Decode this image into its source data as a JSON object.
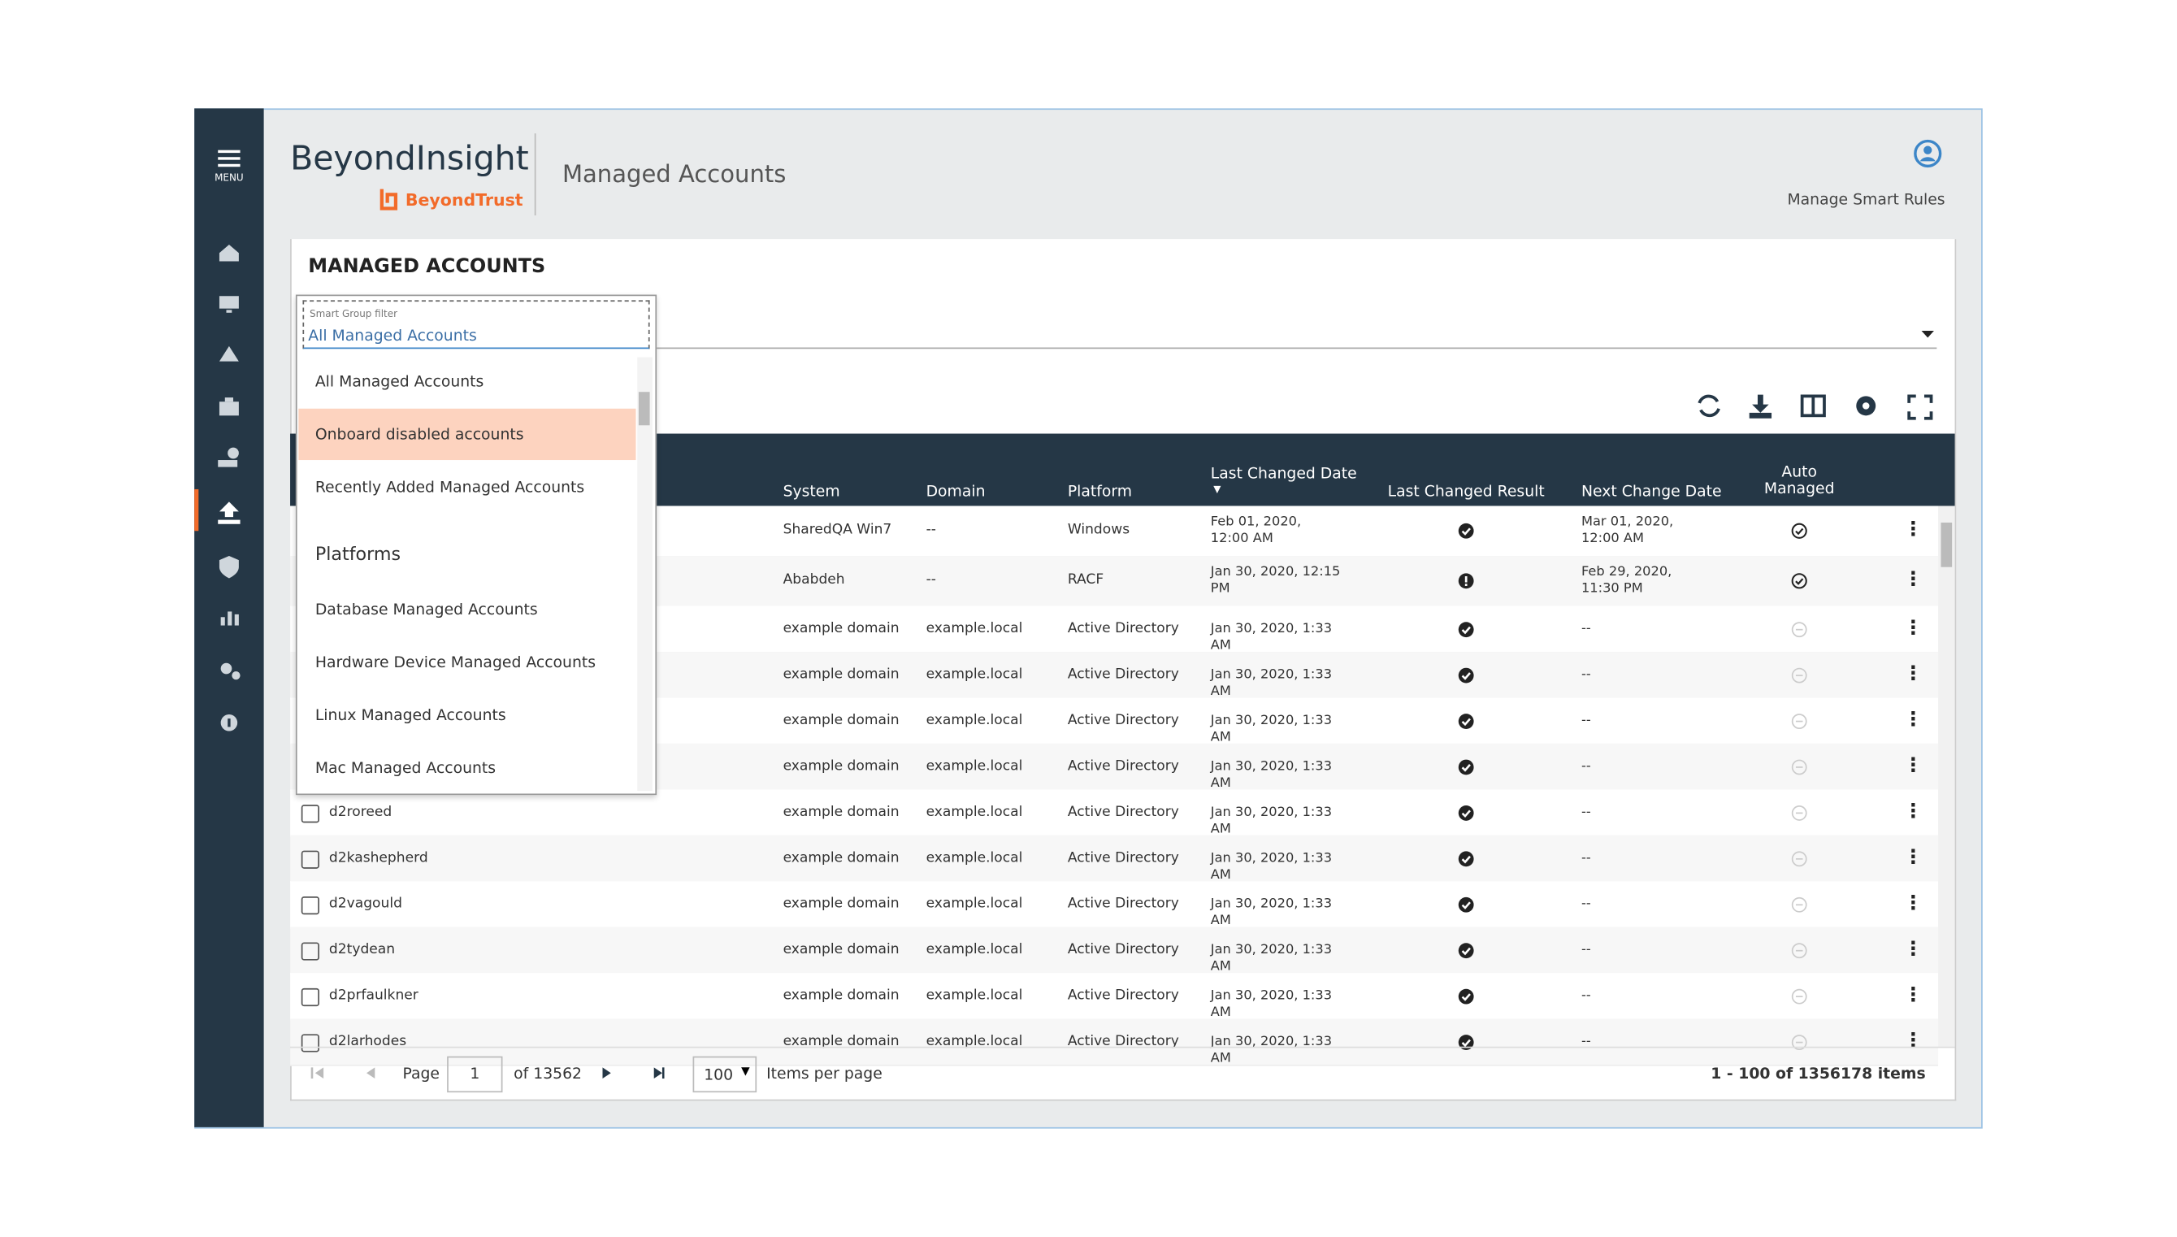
{
  "header": {
    "logo": "BeyondInsight",
    "brand": "BeyondTrust",
    "page_title": "Managed Accounts",
    "user_link": "Manage Smart Rules"
  },
  "sidebar": {
    "menu_label": "MENU"
  },
  "section_title": "MANAGED ACCOUNTS",
  "filter": {
    "label": "Smart Group filter",
    "value": "All Managed Accounts",
    "options": [
      "All Managed Accounts",
      "Onboard disabled accounts",
      "Recently Added Managed Accounts"
    ],
    "group_heading": "Platforms",
    "group_options": [
      "Database Managed Accounts",
      "Hardware Device Managed Accounts",
      "Linux Managed Accounts",
      "Mac Managed Accounts"
    ]
  },
  "table": {
    "columns": [
      "System",
      "Domain",
      "Platform",
      "Last Changed Date",
      "Last Changed Result",
      "Next Change Date",
      "Auto Managed"
    ],
    "rows": [
      {
        "system": "SharedQA Win7",
        "domain": "--",
        "platform": "Windows",
        "last_changed": "Feb 01, 2020, 12:00 AM",
        "next_change": "Mar 01, 2020, 12:00 AM"
      },
      {
        "system": "Ababdeh",
        "domain": "--",
        "platform": "RACF",
        "last_changed": "Jan 30, 2020, 12:15 PM",
        "next_change": "Feb 29, 2020, 11:30 PM"
      },
      {
        "system": "example domain",
        "domain": "example.local",
        "platform": "Active Directory",
        "last_changed": "Jan 30, 2020, 1:33 AM",
        "next_change": "--"
      },
      {
        "system": "example domain",
        "domain": "example.local",
        "platform": "Active Directory",
        "last_changed": "Jan 30, 2020, 1:33 AM",
        "next_change": "--"
      },
      {
        "system": "example domain",
        "domain": "example.local",
        "platform": "Active Directory",
        "last_changed": "Jan 30, 2020, 1:33 AM",
        "next_change": "--"
      },
      {
        "system": "example domain",
        "domain": "example.local",
        "platform": "Active Directory",
        "last_changed": "Jan 30, 2020, 1:33 AM",
        "next_change": "--"
      },
      {
        "name": "d2roreed",
        "system": "example domain",
        "domain": "example.local",
        "platform": "Active Directory",
        "last_changed": "Jan 30, 2020, 1:33 AM",
        "next_change": "--"
      },
      {
        "name": "d2kashepherd",
        "system": "example domain",
        "domain": "example.local",
        "platform": "Active Directory",
        "last_changed": "Jan 30, 2020, 1:33 AM",
        "next_change": "--"
      },
      {
        "name": "d2vagould",
        "system": "example domain",
        "domain": "example.local",
        "platform": "Active Directory",
        "last_changed": "Jan 30, 2020, 1:33 AM",
        "next_change": "--"
      },
      {
        "name": "d2tydean",
        "system": "example domain",
        "domain": "example.local",
        "platform": "Active Directory",
        "last_changed": "Jan 30, 2020, 1:33 AM",
        "next_change": "--"
      },
      {
        "name": "d2prfaulkner",
        "system": "example domain",
        "domain": "example.local",
        "platform": "Active Directory",
        "last_changed": "Jan 30, 2020, 1:33 AM",
        "next_change": "--"
      },
      {
        "name": "d2larhodes",
        "system": "example domain",
        "domain": "example.local",
        "platform": "Active Directory",
        "last_changed": "Jan 30, 2020, 1:33 AM",
        "next_change": "--"
      }
    ]
  },
  "pagination": {
    "page_label": "Page",
    "page": "1",
    "of_pages": "of 13562",
    "page_size": "100",
    "per_page_label": "Items per page",
    "summary": "1 - 100 of 1356178 items"
  }
}
